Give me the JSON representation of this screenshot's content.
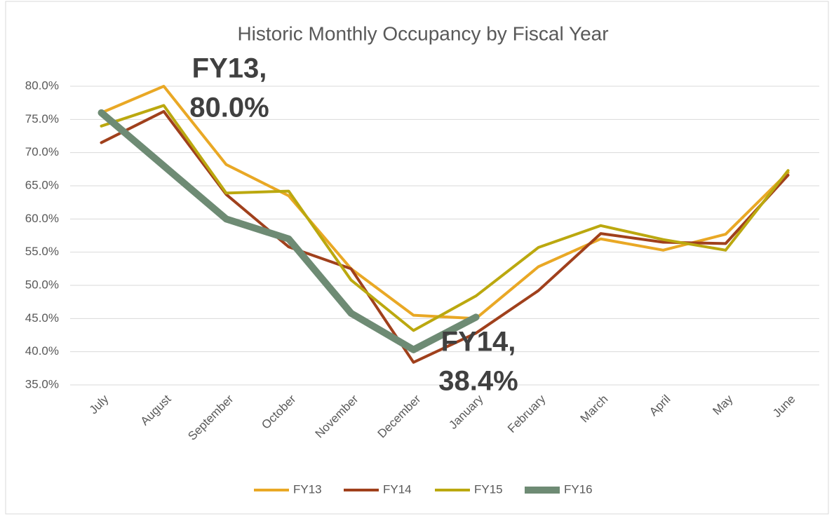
{
  "chart_data": {
    "type": "line",
    "title": "Historic Monthly Occupancy by Fiscal Year",
    "categories": [
      "July",
      "August",
      "September",
      "October",
      "November",
      "December",
      "January",
      "February",
      "March",
      "April",
      "May",
      "June"
    ],
    "series": [
      {
        "name": "FY13",
        "color": "#e9a825",
        "line_width": 4,
        "values": [
          76.0,
          80.0,
          68.2,
          63.5,
          52.5,
          45.5,
          45.0,
          52.8,
          57.0,
          55.3,
          57.7,
          67.0
        ]
      },
      {
        "name": "FY14",
        "color": "#a0401c",
        "line_width": 4,
        "values": [
          71.5,
          76.2,
          63.7,
          55.8,
          52.5,
          38.4,
          42.8,
          49.2,
          57.8,
          56.5,
          56.3,
          66.6
        ]
      },
      {
        "name": "FY15",
        "color": "#bba80f",
        "line_width": 4,
        "values": [
          74.0,
          77.1,
          63.9,
          64.2,
          50.8,
          43.2,
          48.4,
          55.7,
          59.0,
          56.9,
          55.3,
          67.3
        ]
      },
      {
        "name": "FY16",
        "color": "#6e8b74",
        "line_width": 10,
        "values": [
          76.0,
          68.0,
          60.0,
          57.0,
          45.8,
          40.3,
          45.2,
          null,
          null,
          null,
          null,
          null
        ]
      }
    ],
    "ylim": [
      35,
      80
    ],
    "yticks": [
      {
        "value": 35,
        "label": "35.0%"
      },
      {
        "value": 40,
        "label": "40.0%"
      },
      {
        "value": 45,
        "label": "45.0%"
      },
      {
        "value": 50,
        "label": "50.0%"
      },
      {
        "value": 55,
        "label": "55.0%"
      },
      {
        "value": 60,
        "label": "60.0%"
      },
      {
        "value": 65,
        "label": "65.0%"
      },
      {
        "value": 70,
        "label": "70.0%"
      },
      {
        "value": 75,
        "label": "75.0%"
      },
      {
        "value": 80,
        "label": "80.0%"
      }
    ],
    "grid": true,
    "legend": "bottom",
    "annotations": [
      {
        "lines": [
          "FY13,",
          "80.0%"
        ]
      },
      {
        "lines": [
          "FY14,",
          "38.4%"
        ]
      }
    ]
  }
}
